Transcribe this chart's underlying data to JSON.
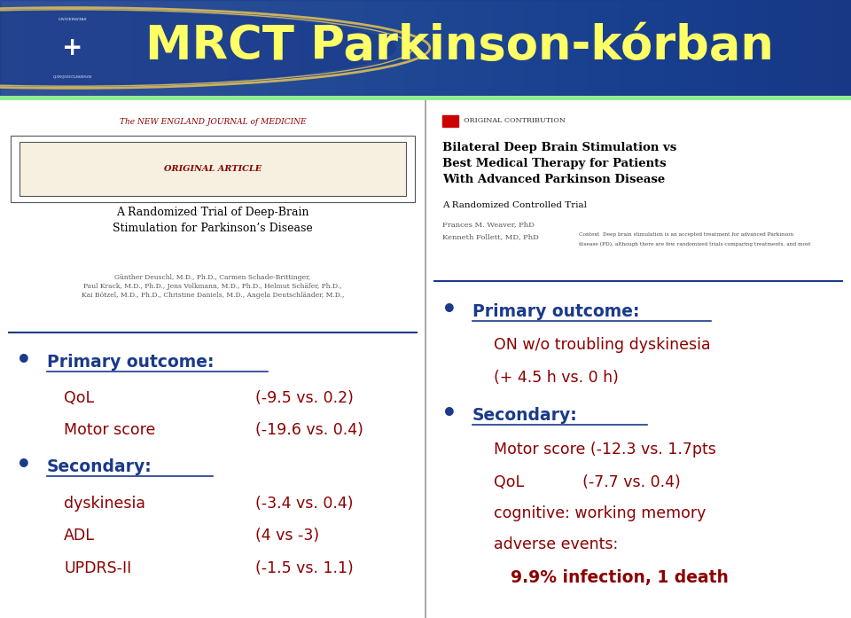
{
  "title": "MRCT Parkinson-kórban",
  "title_color": "#FFFF66",
  "header_bg_color": "#1e3a8a",
  "separator_color": "#90EE90",
  "body_bg_color": "#ffffff",
  "left_journal": "The NEW ENGLAND JOURNAL of MEDICINE",
  "left_article_label": "ORIGINAL ARTICLE",
  "left_paper_title": "A Randomized Trial of Deep-Brain\nStimulation for Parkinson’s Disease",
  "left_authors": "Günther Deuschl, M.D., Ph.D., Carmen Schade-Brittinger,\nPaul Krack, M.D., Ph.D., Jens Volkmann, M.D., Ph.D., Helmut Schäfer, Ph.D.,\nKai Bötzel, M.D., Ph.D., Christine Daniels, M.D., Angela Deutschländer, M.D.,",
  "right_article_label": "ORIGINAL CONTRIBUTION",
  "right_paper_title": "Bilateral Deep Brain Stimulation vs\nBest Medical Therapy for Patients\nWith Advanced Parkinson Disease",
  "right_paper_subtitle": "A Randomized Controlled Trial",
  "right_authors_line1": "Frances M. Weaver, PhD",
  "right_authors_line2": "Kenneth Follett, MD, PhD",
  "right_context": "Context  Deep brain stimulation is an accepted treatment for advanced Parkinson",
  "right_context2": "disease (PD), although there are few randomized trials comparing treatments, and most",
  "left_bullet1_label": "Primary outcome:",
  "left_bullet1_items": [
    [
      "QoL",
      "(-9.5 vs. 0.2)"
    ],
    [
      "Motor score",
      "(-19.6 vs. 0.4)"
    ]
  ],
  "left_bullet2_label": "Secondary:",
  "left_bullet2_items": [
    [
      "dyskinesia",
      "(-3.4 vs. 0.4)"
    ],
    [
      "ADL",
      "(4 vs -3)"
    ],
    [
      "UPDRS-II",
      "(-1.5 vs. 1.1)"
    ]
  ],
  "right_bullet1_label": "Primary outcome:",
  "right_bullet1_line1": "ON w/o troubling dyskinesia",
  "right_bullet1_line2": "(+ 4.5 h vs. 0 h)",
  "right_bullet2_label": "Secondary:",
  "right_bullet2_items": [
    "Motor score (-12.3 vs. 1.7pts",
    "QoL            (-7.7 vs. 0.4)",
    "cognitive: working memory",
    "adverse events:"
  ],
  "right_bullet2_last": "9.9% infection, 1 death",
  "bullet_color": "#1a3a8a",
  "label_color": "#1a3a8a",
  "item_color": "#8B0000",
  "journal_color": "#8B0000",
  "article_label_color": "#8B0000",
  "paper_title_color": "#000000",
  "authors_color": "#555555",
  "divider_color": "#aaaaaa",
  "separator_line_color": "#1a3a8a"
}
